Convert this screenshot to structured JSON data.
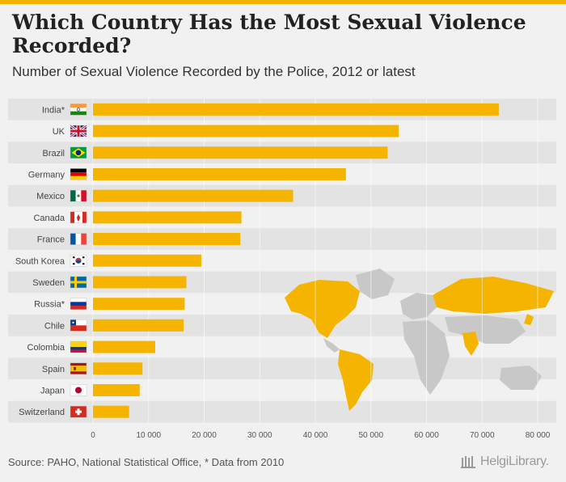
{
  "header": {
    "title": "Which Country Has the Most Sexual Violence Recorded?",
    "subtitle": "Number of Sexual Violence Recorded by the Police, 2012 or latest"
  },
  "footer": {
    "source": "Source: PAHO, National Statistical Office, * Data from 2010",
    "logo_text": "HelgiLibrary."
  },
  "colors": {
    "bar": "#f5b400",
    "map_highlight": "#f5b400",
    "map_other": "#c8c8c8",
    "stripe": "#e3e3e3"
  },
  "chart_data": {
    "type": "bar",
    "orientation": "horizontal",
    "title": "Which Country Has the Most Sexual Violence Recorded?",
    "subtitle": "Number of Sexual Violence Recorded by the Police, 2012 or latest",
    "categories": [
      "India*",
      "UK",
      "Brazil",
      "Germany",
      "Mexico",
      "Canada",
      "France",
      "South Korea",
      "Sweden",
      "Russia*",
      "Chile",
      "Colombia",
      "Spain",
      "Japan",
      "Switzerland"
    ],
    "flags": [
      "india",
      "uk",
      "brazil",
      "germany",
      "mexico",
      "canada",
      "france",
      "south-korea",
      "sweden",
      "russia",
      "chile",
      "colombia",
      "spain",
      "japan",
      "switzerland"
    ],
    "values": [
      73000,
      55000,
      53000,
      45500,
      36000,
      26700,
      26500,
      19500,
      16800,
      16500,
      16300,
      11200,
      8900,
      8400,
      6500
    ],
    "xlim": [
      0,
      80000
    ],
    "ticks": [
      0,
      10000,
      20000,
      30000,
      40000,
      50000,
      60000,
      70000,
      80000
    ],
    "tick_labels": [
      "0",
      "10 000",
      "20 000",
      "30 000",
      "40 000",
      "50 000",
      "60 000",
      "70 000",
      "80 000"
    ],
    "xlabel": "",
    "ylabel": "",
    "grid": true
  }
}
